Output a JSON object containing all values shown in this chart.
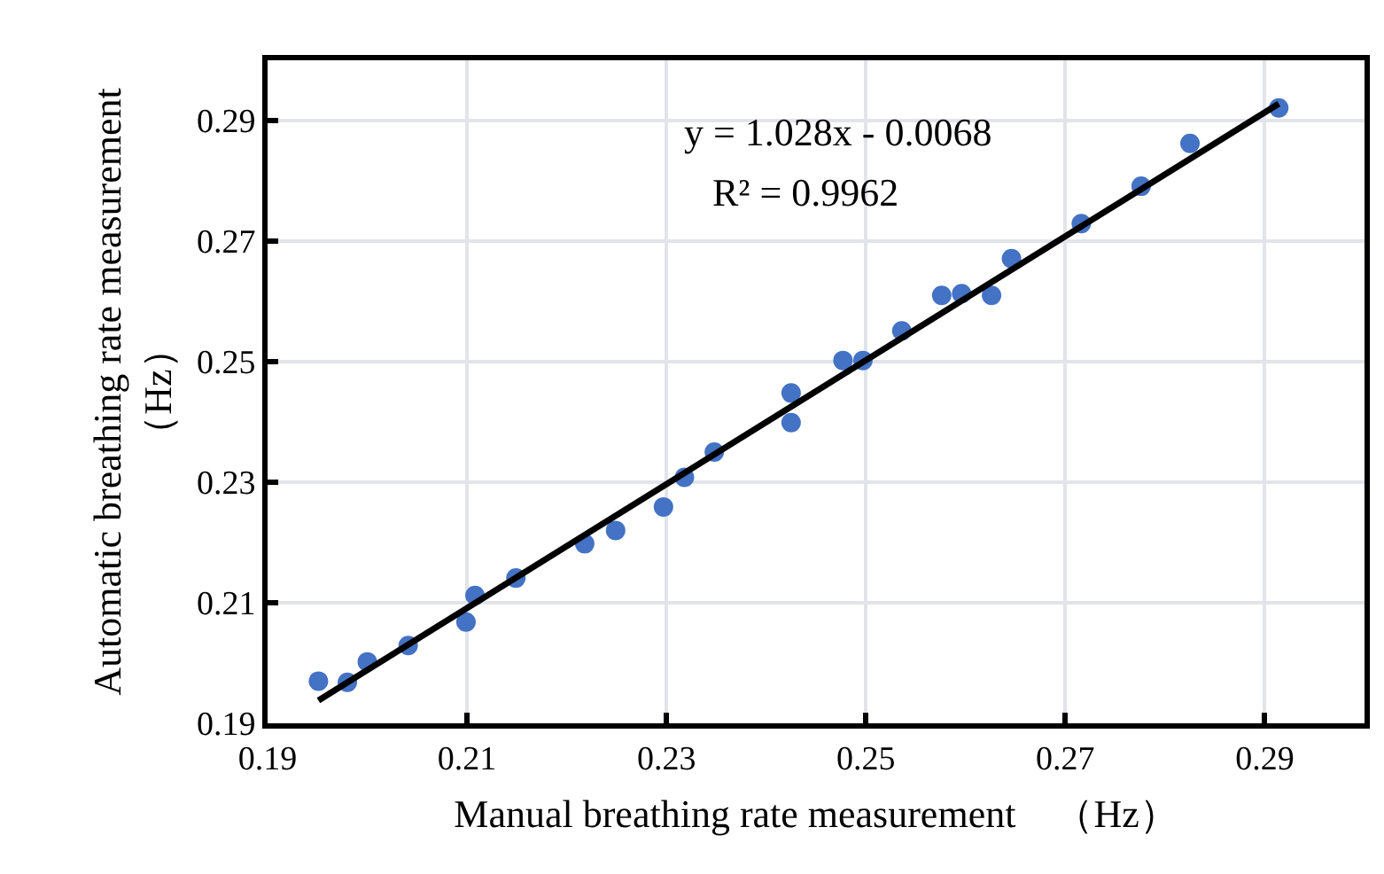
{
  "chart_data": {
    "type": "scatter",
    "xlabel": "Manual breathing rate measurement　（Hz）",
    "ylabel": "Automatic breathing rate measurement\n（Hz）",
    "annotations": [
      "y = 1.028x - 0.0068",
      "R² = 0.9962"
    ],
    "xlim": [
      0.19,
      0.3
    ],
    "xticks": [
      0.19,
      0.21,
      0.23,
      0.25,
      0.27,
      0.29
    ],
    "ylim": [
      0.19,
      0.3
    ],
    "yticks": [
      0.19,
      0.21,
      0.23,
      0.25,
      0.27,
      0.29
    ],
    "grid": true,
    "marker": "circle",
    "series": [
      {
        "color": "#4472c4",
        "x": [
          0.1951,
          0.198,
          0.2,
          0.2041,
          0.2099,
          0.2108,
          0.2149,
          0.2218,
          0.2249,
          0.2297,
          0.2318,
          0.2348,
          0.2425,
          0.2425,
          0.2477,
          0.2497,
          0.2536,
          0.2576,
          0.2596,
          0.2626,
          0.2646,
          0.2716,
          0.2776,
          0.2825,
          0.2914
        ],
        "values": [
          0.197,
          0.1968,
          0.2002,
          0.2029,
          0.2068,
          0.2112,
          0.2141,
          0.2198,
          0.222,
          0.2259,
          0.2308,
          0.235,
          0.2448,
          0.2399,
          0.2502,
          0.2502,
          0.2551,
          0.261,
          0.2613,
          0.261,
          0.2671,
          0.2729,
          0.2791,
          0.2862,
          0.2921
        ]
      },
      {
        "type": "line",
        "color": "#000000",
        "x": [
          0.1951,
          0.2914
        ],
        "values": [
          0.1938,
          0.2928
        ],
        "line_style": "solid",
        "marker": "none"
      }
    ]
  }
}
